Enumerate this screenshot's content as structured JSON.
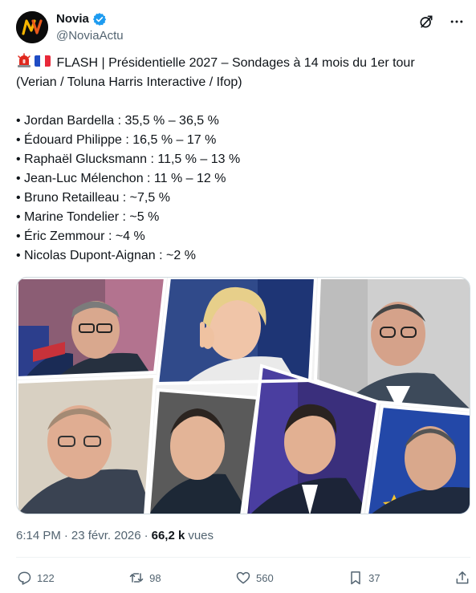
{
  "author": {
    "display_name": "Novia",
    "handle": "@NoviaActu",
    "avatar_icon": "novia-logo",
    "verified_color": "#1d9bf0"
  },
  "header_icons": [
    "grok-icon",
    "more-icon"
  ],
  "post": {
    "headline": "FLASH | Présidentielle 2027 – Sondages à 14 mois du 1er tour",
    "source": "(Verian / Toluna Harris Interactive / Ifop)",
    "items": [
      "• Jordan Bardella : 35,5 % – 36,5 %",
      "• Édouard Philippe : 16,5 % – 17 %",
      "• Raphaël Glucksmann : 11,5 % – 13 %",
      "• Jean-Luc Mélenchon : 11 % – 12 %",
      "• Bruno Retailleau : ~7,5 %",
      "• Marine Tondelier : ~5 %",
      "• Éric Zemmour : ~4 %",
      "• Nicolas Dupont-Aignan : ~2 %"
    ]
  },
  "meta": {
    "time": "6:14 PM",
    "separator": "·",
    "date": "23 févr. 2026",
    "separator2": "·",
    "views_count": "66,2 k",
    "views_label": "vues"
  },
  "actions": {
    "replies": "122",
    "reposts": "98",
    "likes": "560",
    "bookmarks": "37"
  },
  "colors": {
    "text": "#0f1419",
    "muted": "#536471",
    "border": "#cfd9de",
    "accent": "#1d9bf0"
  }
}
